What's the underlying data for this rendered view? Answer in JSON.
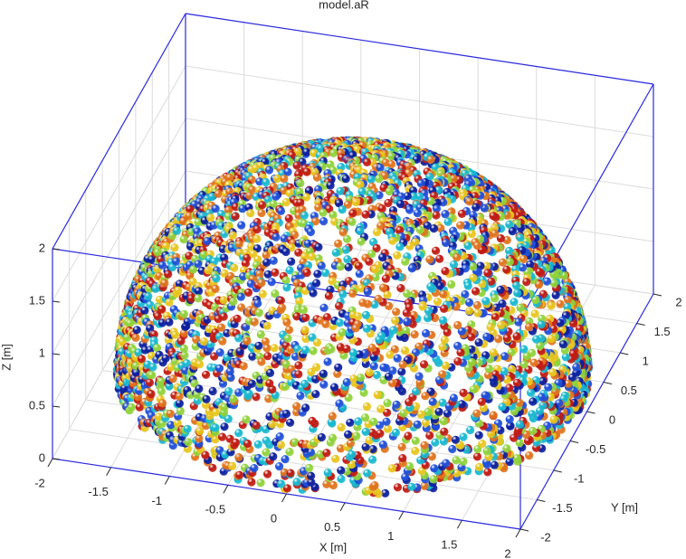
{
  "chart_data": {
    "type": "scatter3d",
    "title": "model.aR",
    "xlabel": "X [m]",
    "ylabel": "Y [m]",
    "zlabel": "Z [m]",
    "xlim": [
      -2,
      2
    ],
    "ylim": [
      -2,
      2
    ],
    "zlim": [
      0,
      2
    ],
    "xticks": [
      -2,
      -1.5,
      -1,
      -0.5,
      0,
      0.5,
      1,
      1.5,
      2
    ],
    "yticks": [
      -2,
      -1.5,
      -1,
      -0.5,
      0,
      0.5,
      1,
      1.5,
      2
    ],
    "zticks": [
      0,
      0.5,
      1,
      1.5,
      2
    ],
    "grid": true,
    "colors": [
      "#0b1f9e",
      "#1f4fd8",
      "#18b8d0",
      "#8fd23a",
      "#e8c51c",
      "#e0731c",
      "#c01a12"
    ]
  }
}
